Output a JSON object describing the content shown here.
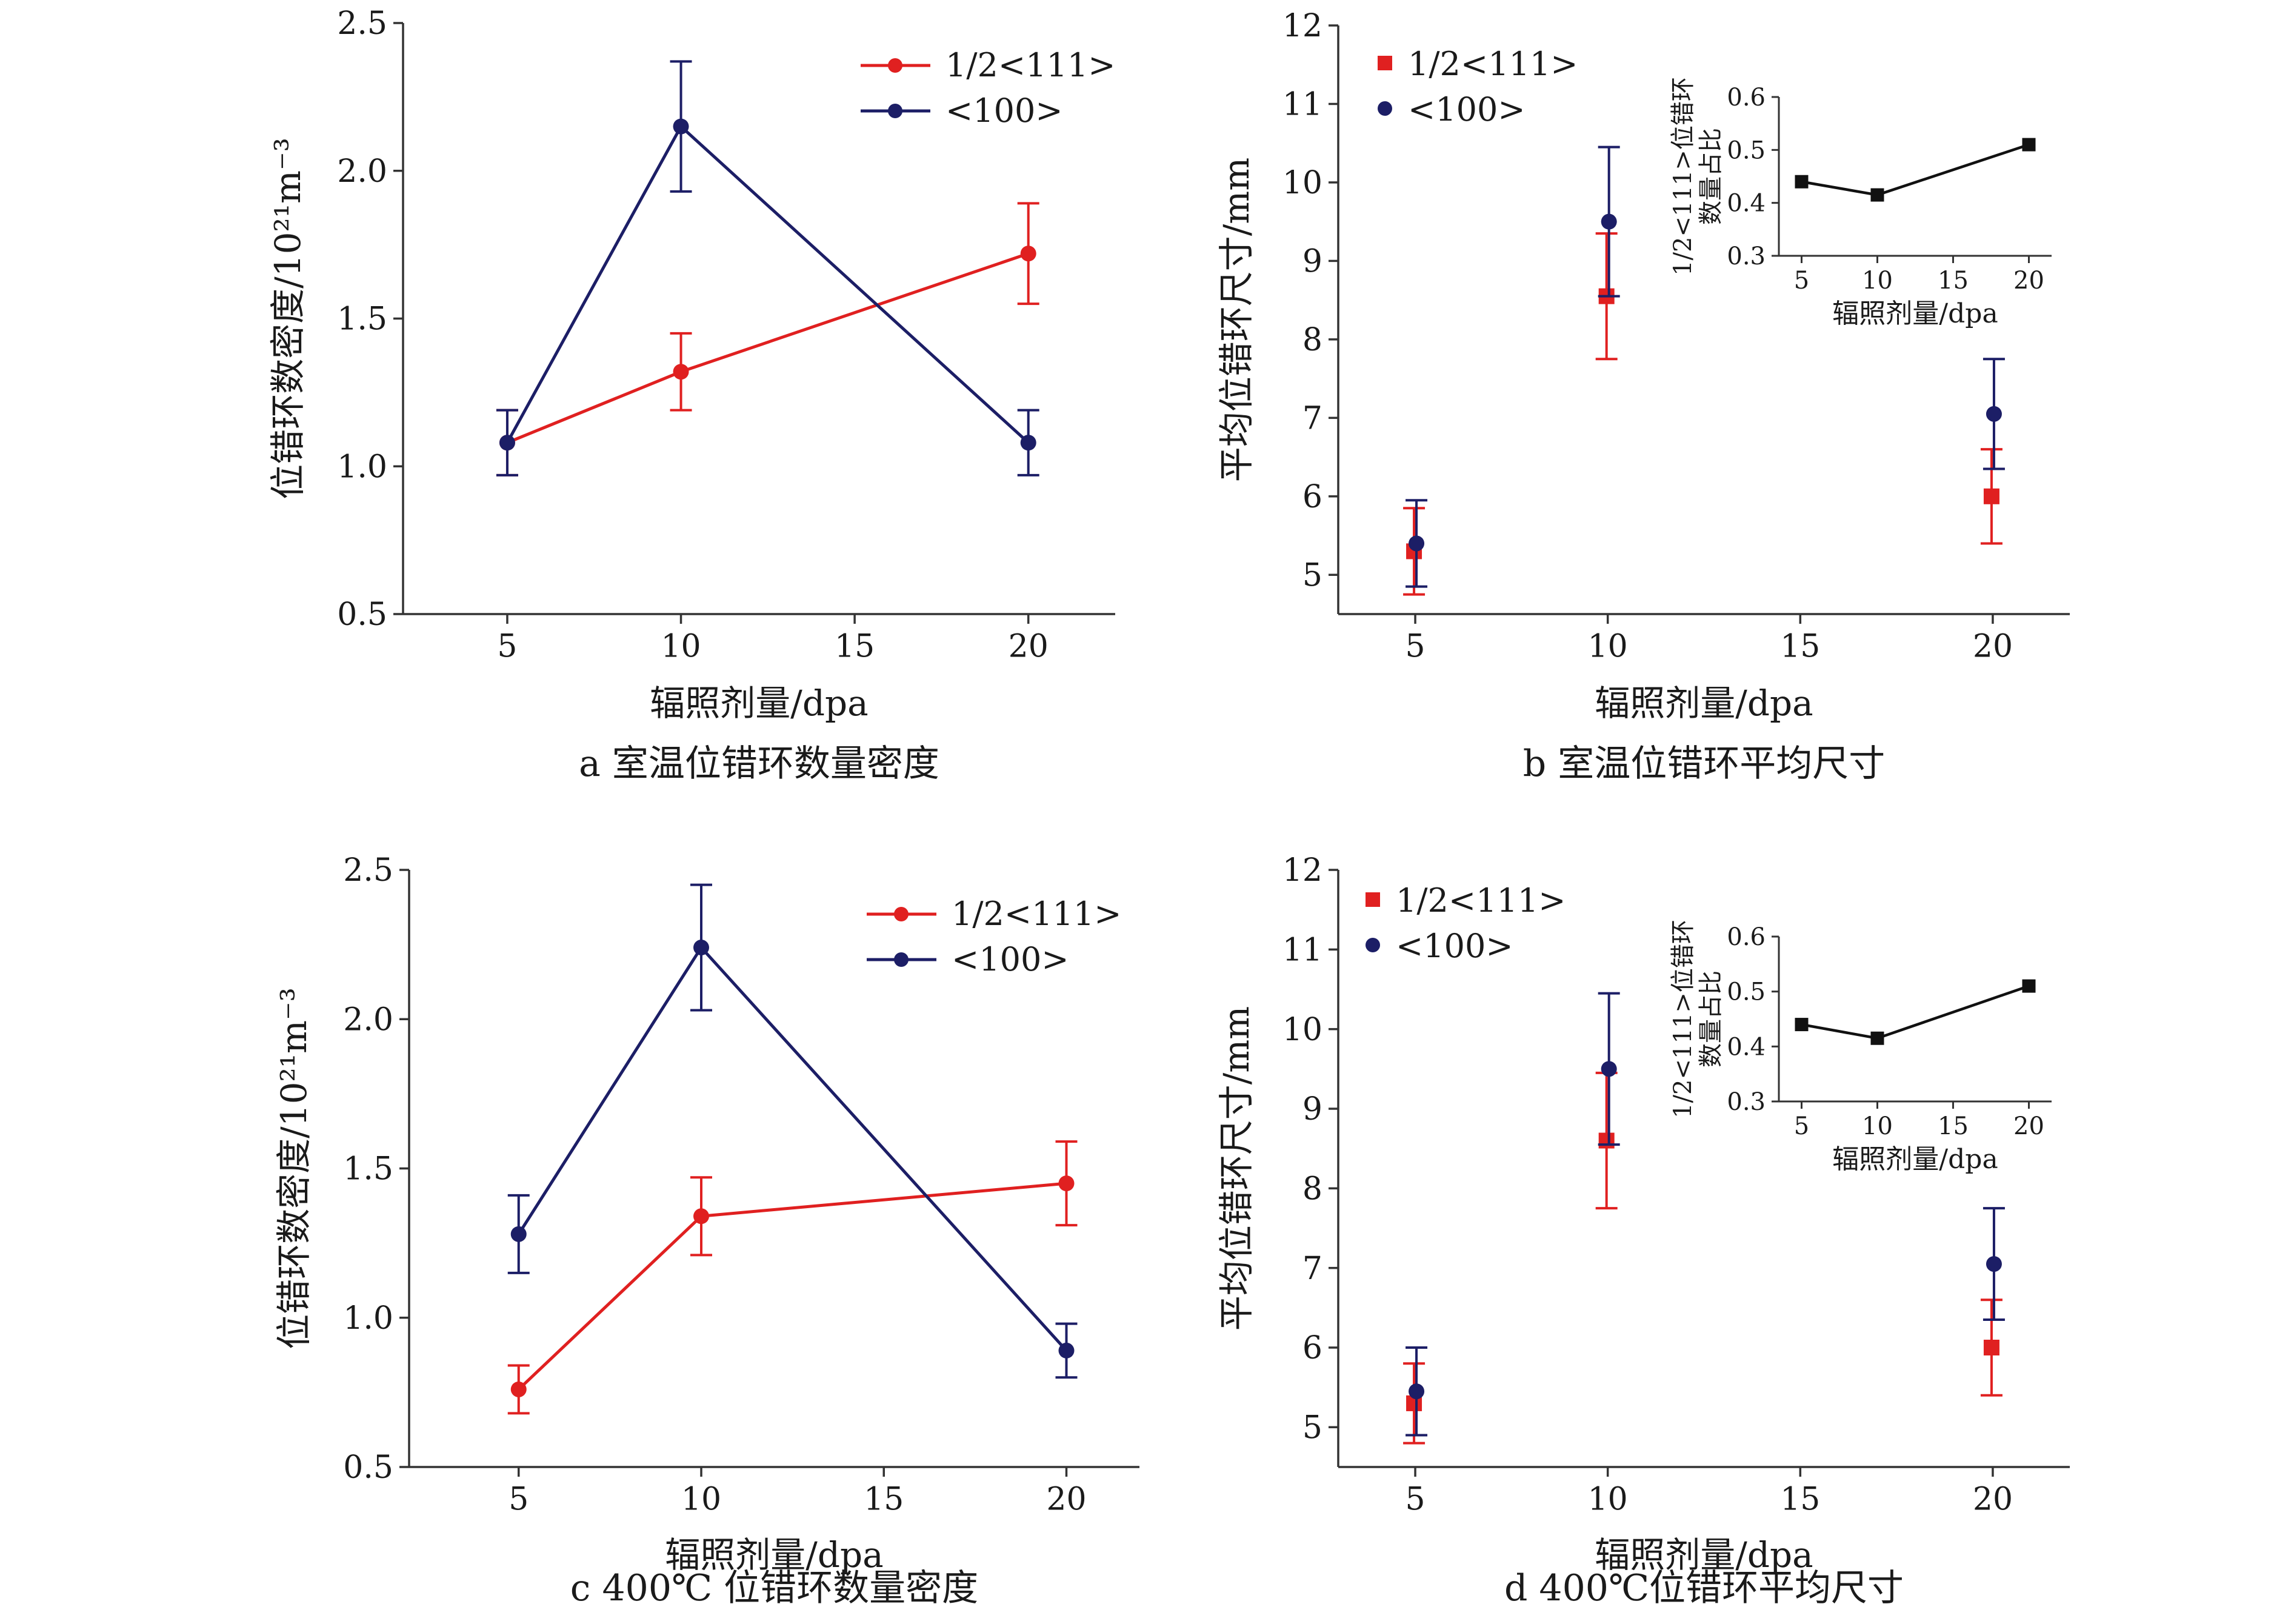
{
  "colors": {
    "red": "#e02020",
    "navy": "#1c1e66",
    "black": "#111111",
    "axis": "#333333"
  },
  "chart_data": [
    {
      "id": "a",
      "type": "line",
      "caption": "a  室温位错环数量密度",
      "xlabel": "辐照剂量/dpa",
      "ylabel": "位错环数密度/10²¹m⁻³",
      "xlim": [
        2,
        22.5
      ],
      "ylim": [
        0.5,
        2.5
      ],
      "xticks": [
        5,
        10,
        15,
        20
      ],
      "yticks": [
        0.5,
        1.0,
        1.5,
        2.0,
        2.5
      ],
      "ytick_labels": [
        "0.5",
        "1.0",
        "1.5",
        "2.0",
        "2.5"
      ],
      "legend": "top-right",
      "series": [
        {
          "name": "1/2<111>",
          "color": "#e02020",
          "marker": "circle",
          "connected": true,
          "x": [
            5,
            10,
            20
          ],
          "y": [
            1.08,
            1.32,
            1.72
          ],
          "err": [
            0.11,
            0.13,
            0.17
          ]
        },
        {
          "name": "<100>",
          "color": "#1c1e66",
          "marker": "circle",
          "connected": true,
          "x": [
            5,
            10,
            20
          ],
          "y": [
            1.08,
            2.15,
            1.08
          ],
          "err": [
            0.11,
            0.22,
            0.11
          ]
        }
      ]
    },
    {
      "id": "b",
      "type": "scatter",
      "caption": "b  室温位错环平均尺寸",
      "xlabel": "辐照剂量/dpa",
      "ylabel": "平均位错环尺寸/mm",
      "xlim": [
        3,
        22
      ],
      "ylim": [
        4.5,
        12
      ],
      "xticks": [
        5,
        10,
        15,
        20
      ],
      "yticks": [
        5,
        6,
        7,
        8,
        9,
        10,
        11,
        12
      ],
      "ytick_labels": [
        "5",
        "6",
        "7",
        "8",
        "9",
        "10",
        "11",
        "12"
      ],
      "legend": "top-left",
      "series": [
        {
          "name": "1/2<111>",
          "color": "#e02020",
          "marker": "square",
          "connected": false,
          "x": [
            5,
            10,
            20
          ],
          "y": [
            5.3,
            8.55,
            6.0
          ],
          "err": [
            0.55,
            0.8,
            0.6
          ]
        },
        {
          "name": "<100>",
          "color": "#1c1e66",
          "marker": "circle",
          "connected": false,
          "x": [
            5,
            10,
            20
          ],
          "y": [
            5.4,
            9.5,
            7.05
          ],
          "err": [
            0.55,
            0.95,
            0.7
          ]
        }
      ],
      "inset": {
        "type": "line",
        "xlabel": "辐照剂量/dpa",
        "ylabel_line1": "1/2<111>位错环",
        "ylabel_line2": "数量占比",
        "xlim": [
          3.5,
          21.5
        ],
        "ylim": [
          0.3,
          0.6
        ],
        "xticks": [
          5,
          10,
          15,
          20
        ],
        "yticks": [
          0.3,
          0.4,
          0.5,
          0.6
        ],
        "ytick_labels": [
          "0.3",
          "0.4",
          "0.5",
          "0.6"
        ],
        "series": [
          {
            "color": "#111111",
            "marker": "square",
            "connected": true,
            "x": [
              5,
              10,
              20
            ],
            "y": [
              0.44,
              0.415,
              0.51
            ]
          }
        ]
      }
    },
    {
      "id": "c",
      "type": "line",
      "caption": "c  400℃ 位错环数量密度",
      "xlabel": "辐照剂量/dpa",
      "ylabel": "位错环数密度/10²¹m⁻³",
      "xlim": [
        2,
        22
      ],
      "ylim": [
        0.5,
        2.5
      ],
      "xticks": [
        5,
        10,
        15,
        20
      ],
      "yticks": [
        0.5,
        1.0,
        1.5,
        2.0,
        2.5
      ],
      "ytick_labels": [
        "0.5",
        "1.0",
        "1.5",
        "2.0",
        "2.5"
      ],
      "legend": "top-right",
      "series": [
        {
          "name": "1/2<111>",
          "color": "#e02020",
          "marker": "circle",
          "connected": true,
          "x": [
            5,
            10,
            20
          ],
          "y": [
            0.76,
            1.34,
            1.45
          ],
          "err": [
            0.08,
            0.13,
            0.14
          ]
        },
        {
          "name": "<100>",
          "color": "#1c1e66",
          "marker": "circle",
          "connected": true,
          "x": [
            5,
            10,
            20
          ],
          "y": [
            1.28,
            2.24,
            0.89
          ],
          "err": [
            0.13,
            0.21,
            0.09
          ]
        }
      ]
    },
    {
      "id": "d",
      "type": "scatter",
      "caption": "d  400℃位错环平均尺寸",
      "xlabel": "辐照剂量/dpa",
      "ylabel": "平均位错环尺寸/mm",
      "xlim": [
        3,
        22
      ],
      "ylim": [
        4.5,
        12
      ],
      "xticks": [
        5,
        10,
        15,
        20
      ],
      "yticks": [
        5,
        6,
        7,
        8,
        9,
        10,
        11,
        12
      ],
      "ytick_labels": [
        "5",
        "6",
        "7",
        "8",
        "9",
        "10",
        "11",
        "12"
      ],
      "legend": "top-left",
      "series": [
        {
          "name": "1/2<111>",
          "color": "#e02020",
          "marker": "square",
          "connected": false,
          "x": [
            5,
            10,
            20
          ],
          "y": [
            5.3,
            8.6,
            6.0
          ],
          "err": [
            0.5,
            0.85,
            0.6
          ]
        },
        {
          "name": "<100>",
          "color": "#1c1e66",
          "marker": "circle",
          "connected": false,
          "x": [
            5,
            10,
            20
          ],
          "y": [
            5.45,
            9.5,
            7.05
          ],
          "err": [
            0.55,
            0.95,
            0.7
          ]
        }
      ],
      "inset": {
        "type": "line",
        "xlabel": "辐照剂量/dpa",
        "ylabel_line1": "1/2<111>位错环",
        "ylabel_line2": "数量占比",
        "xlim": [
          3.5,
          21.5
        ],
        "ylim": [
          0.3,
          0.6
        ],
        "xticks": [
          5,
          10,
          15,
          20
        ],
        "yticks": [
          0.3,
          0.4,
          0.5,
          0.6
        ],
        "ytick_labels": [
          "0.3",
          "0.4",
          "0.5",
          "0.6"
        ],
        "series": [
          {
            "color": "#111111",
            "marker": "square",
            "connected": true,
            "x": [
              5,
              10,
              20
            ],
            "y": [
              0.44,
              0.415,
              0.51
            ]
          }
        ]
      }
    }
  ]
}
